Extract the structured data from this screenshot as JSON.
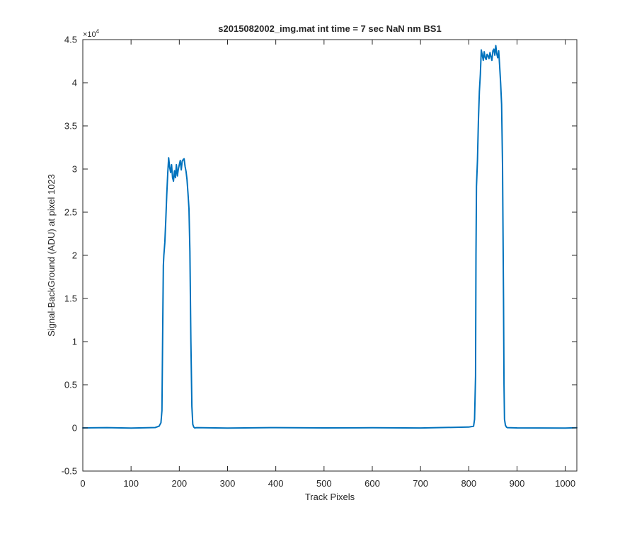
{
  "chart_data": {
    "type": "line",
    "title": "s2015082002_img.mat int time = 7 sec  NaN nm BS1",
    "xlabel": "Track Pixels",
    "ylabel": "Signal-BackGround (ADU) at pixel 1023",
    "y_exponent_label": "×10",
    "y_exponent_power": "4",
    "xlim": [
      0,
      1024
    ],
    "ylim": [
      -5000,
      45000
    ],
    "xticks": [
      0,
      100,
      200,
      300,
      400,
      500,
      600,
      700,
      800,
      900,
      1000
    ],
    "xtick_labels": [
      "0",
      "100",
      "200",
      "300",
      "400",
      "500",
      "600",
      "700",
      "800",
      "900",
      "1000"
    ],
    "yticks": [
      -5000,
      0,
      5000,
      10000,
      15000,
      20000,
      25000,
      30000,
      35000,
      40000,
      45000
    ],
    "ytick_labels": [
      "-0.5",
      "0",
      "0.5",
      "1",
      "1.5",
      "2",
      "2.5",
      "3",
      "3.5",
      "4",
      "4.5"
    ],
    "grid": false,
    "line_color": "#0072BD",
    "series": [
      {
        "x": [
          0,
          50,
          100,
          150,
          158,
          162,
          164,
          165,
          166,
          167,
          168,
          170,
          172,
          174,
          176,
          178,
          180,
          182,
          184,
          186,
          188,
          190,
          192,
          194,
          196,
          198,
          200,
          202,
          204,
          206,
          208,
          210,
          212,
          214,
          216,
          218,
          220,
          222,
          224,
          226,
          228,
          230,
          232,
          236,
          300,
          400,
          500,
          600,
          700,
          800,
          810,
          812,
          814,
          815,
          816,
          818,
          820,
          822,
          824,
          826,
          828,
          830,
          832,
          834,
          836,
          838,
          840,
          842,
          844,
          846,
          848,
          850,
          852,
          854,
          856,
          858,
          860,
          862,
          864,
          866,
          868,
          870,
          872,
          873,
          874,
          876,
          878,
          880,
          900,
          1000,
          1024
        ],
        "y": [
          0,
          30,
          -20,
          40,
          200,
          600,
          2000,
          8000,
          14000,
          18800,
          20000,
          21500,
          24000,
          27000,
          29500,
          31300,
          30200,
          29600,
          30500,
          29000,
          28600,
          29800,
          29000,
          30500,
          29200,
          30000,
          30500,
          31000,
          29900,
          30900,
          31100,
          31200,
          30300,
          29700,
          28800,
          27200,
          25400,
          20500,
          10000,
          2500,
          400,
          100,
          0,
          30,
          -20,
          30,
          0,
          20,
          -10,
          100,
          200,
          1000,
          6000,
          20000,
          28000,
          31000,
          35500,
          39000,
          41000,
          43800,
          43200,
          42600,
          43600,
          42900,
          42700,
          43300,
          43100,
          42800,
          43500,
          43000,
          42600,
          43700,
          43900,
          43200,
          44300,
          43400,
          42900,
          43700,
          42000,
          40000,
          37500,
          30500,
          15000,
          5000,
          1000,
          300,
          100,
          30,
          0,
          -20,
          20
        ]
      }
    ]
  }
}
